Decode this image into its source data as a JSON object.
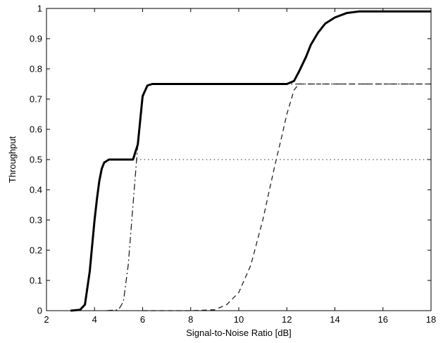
{
  "chart_data": {
    "type": "line",
    "title": "",
    "xlabel": "Signal-to-Noise Ratio [dB]",
    "ylabel": "Throughput",
    "xlim": [
      2,
      18
    ],
    "ylim": [
      0,
      1
    ],
    "xticks": [
      2,
      4,
      6,
      8,
      10,
      12,
      14,
      16,
      18
    ],
    "yticks": [
      0,
      0.1,
      0.2,
      0.3,
      0.4,
      0.5,
      0.6,
      0.7,
      0.8,
      0.9,
      1
    ],
    "ytick_labels": [
      "0",
      "0.1",
      "0.2",
      "0.3",
      "0.4",
      "0.5",
      "0.6",
      "0.7",
      "0.8",
      "0.9",
      "1"
    ],
    "grid": false,
    "legend": "none",
    "series": [
      {
        "style": "dotted",
        "color": "#555555",
        "x": [
          3,
          3.4,
          3.6,
          3.8,
          4,
          4.1,
          4.2,
          4.3,
          4.4,
          4.6,
          5,
          6,
          8,
          10,
          12,
          14,
          16,
          18
        ],
        "y": [
          0,
          0.003,
          0.02,
          0.13,
          0.3,
          0.37,
          0.43,
          0.47,
          0.49,
          0.5,
          0.5,
          0.5,
          0.5,
          0.5,
          0.5,
          0.5,
          0.5,
          0.5
        ]
      },
      {
        "style": "dashdot",
        "color": "#222222",
        "x": [
          4.5,
          5,
          5.2,
          5.4,
          5.6,
          5.8,
          6,
          6.1,
          6.2,
          6.4,
          7,
          8,
          10,
          12,
          14,
          16,
          18
        ],
        "y": [
          0,
          0.003,
          0.03,
          0.15,
          0.35,
          0.55,
          0.7,
          0.73,
          0.745,
          0.75,
          0.75,
          0.75,
          0.75,
          0.75,
          0.75,
          0.75,
          0.75
        ]
      },
      {
        "style": "dashed",
        "color": "#222222",
        "x": [
          6,
          8,
          9,
          9.5,
          10,
          10.5,
          11,
          11.5,
          11.8,
          12,
          12.3,
          12.5,
          13,
          14,
          16,
          18
        ],
        "y": [
          0,
          0,
          0.003,
          0.02,
          0.06,
          0.15,
          0.3,
          0.48,
          0.58,
          0.65,
          0.73,
          0.75,
          0.75,
          0.75,
          0.75,
          0.75
        ]
      },
      {
        "style": "solid",
        "color": "#000000",
        "x": [
          3,
          3.4,
          3.6,
          3.8,
          4,
          4.1,
          4.2,
          4.3,
          4.4,
          4.6,
          5,
          5.6,
          5.8,
          6,
          6.2,
          6.4,
          7,
          8,
          10,
          12,
          12.3,
          12.5,
          12.8,
          13,
          13.3,
          13.6,
          14,
          14.5,
          15,
          16,
          17,
          18
        ],
        "y": [
          0,
          0.003,
          0.02,
          0.13,
          0.3,
          0.37,
          0.43,
          0.47,
          0.49,
          0.5,
          0.5,
          0.5,
          0.55,
          0.71,
          0.745,
          0.75,
          0.75,
          0.75,
          0.75,
          0.75,
          0.76,
          0.79,
          0.84,
          0.88,
          0.92,
          0.95,
          0.97,
          0.985,
          0.99,
          0.99,
          0.99,
          0.99
        ]
      }
    ]
  }
}
